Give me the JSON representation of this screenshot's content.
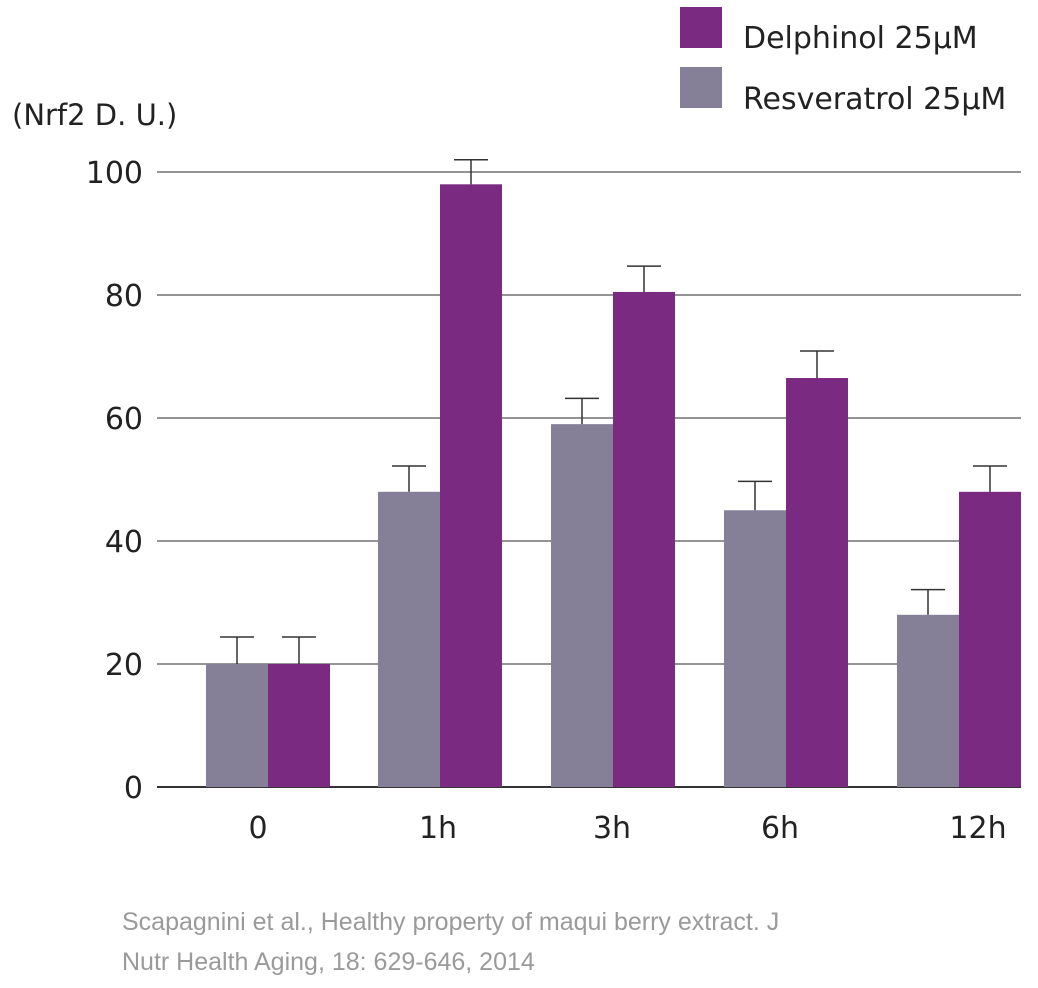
{
  "chart_data": {
    "type": "bar",
    "ylabel": "(Nrf2 D. U.)",
    "xlabel": "",
    "title": "",
    "ylim": [
      0,
      100
    ],
    "yticks": [
      "0",
      "20",
      "40",
      "60",
      "80",
      "100"
    ],
    "categories": [
      "0",
      "1h",
      "3h",
      "6h",
      "12h"
    ],
    "grid": true,
    "legend_position": "top-right",
    "series": [
      {
        "name": "Resveratrol 25μM",
        "color": "#858097",
        "values": [
          20,
          48,
          59,
          45,
          28
        ],
        "errors": [
          4.4,
          4.2,
          4.2,
          4.7,
          4.1
        ]
      },
      {
        "name": "Delphinol 25μM",
        "color": "#7a2a80",
        "values": [
          20,
          98,
          80.5,
          66.5,
          48
        ],
        "errors": [
          4.4,
          4.0,
          4.2,
          4.4,
          4.2
        ]
      }
    ],
    "legend_order": [
      1,
      0
    ]
  },
  "citation": {
    "line1": "Scapagnini et al., Healthy property of maqui berry extract. J",
    "line2": "Nutr Health Aging, 18: 629-646, 2014"
  }
}
